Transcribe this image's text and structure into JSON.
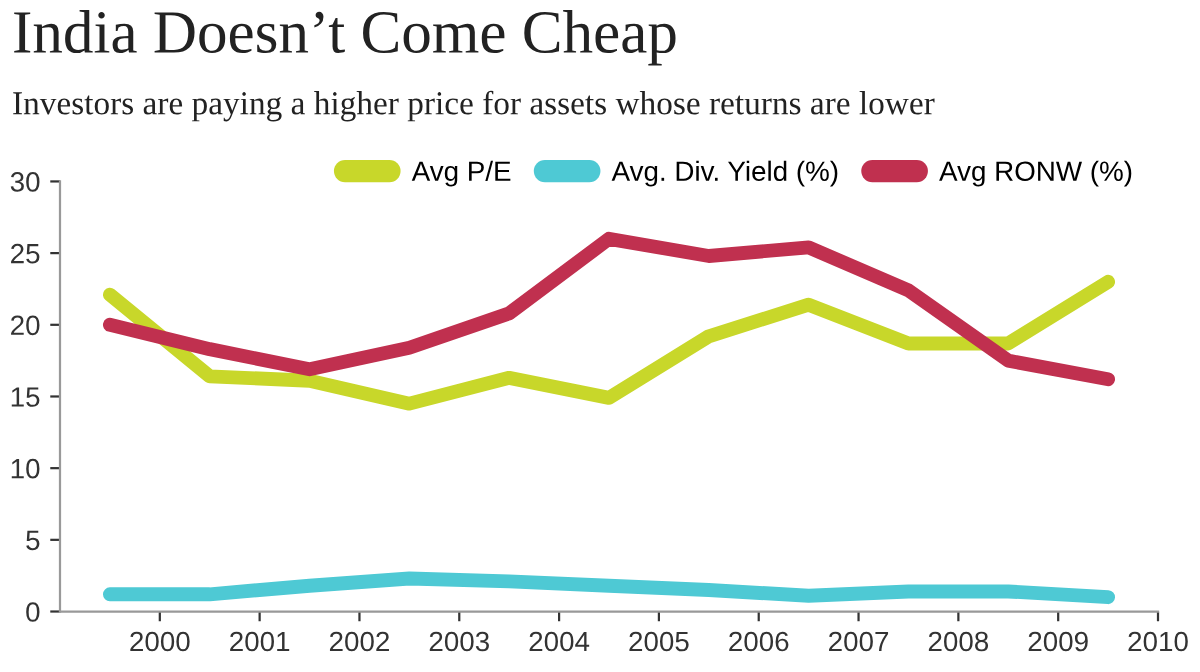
{
  "chart_data": {
    "type": "line",
    "title": "India Doesn’t Come Cheap",
    "subtitle": "Investors are paying a higher price for assets whose returns are lower",
    "x": [
      1999.5,
      2000.5,
      2001.5,
      2002.5,
      2003.5,
      2004.5,
      2005.5,
      2006.5,
      2007.5,
      2008.5,
      2009.5
    ],
    "series": [
      {
        "name": "Avg P/E",
        "color": "#c8d72a",
        "values": [
          22.1,
          16.4,
          16.1,
          14.5,
          16.3,
          14.9,
          19.2,
          21.4,
          18.7,
          18.7,
          23.0
        ]
      },
      {
        "name": "Avg. Div. Yield (%)",
        "color": "#4ec9d4",
        "values": [
          1.2,
          1.2,
          1.8,
          2.3,
          2.1,
          1.8,
          1.5,
          1.1,
          1.4,
          1.4,
          1.0
        ]
      },
      {
        "name": "Avg RONW (%)",
        "color": "#c0304f",
        "values": [
          20.0,
          18.3,
          16.9,
          18.4,
          20.8,
          26.0,
          24.8,
          25.4,
          22.4,
          17.5,
          16.2
        ]
      }
    ],
    "xlim": [
      1999,
      2010
    ],
    "xticks": [
      2000,
      2001,
      2002,
      2003,
      2004,
      2005,
      2006,
      2007,
      2008,
      2009,
      2010
    ],
    "ylim": [
      0,
      30
    ],
    "yticks": [
      0,
      5,
      10,
      15,
      20,
      25,
      30
    ],
    "grid": false,
    "legend": "top right",
    "marker": "none",
    "line_style": "solid"
  }
}
